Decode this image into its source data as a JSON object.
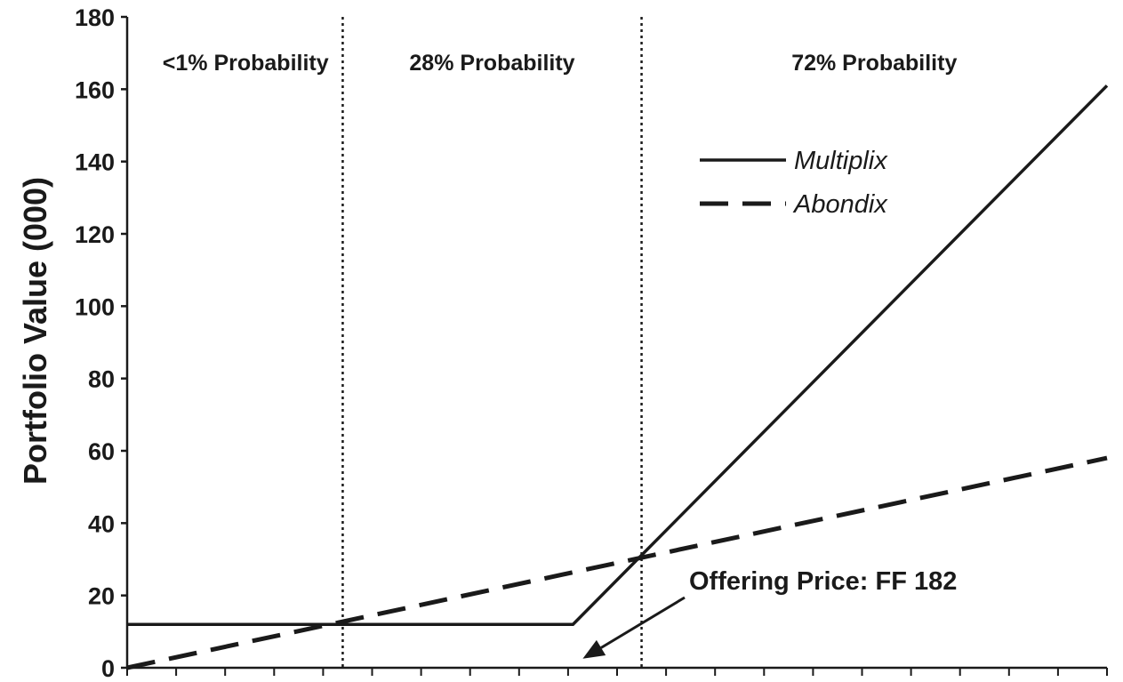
{
  "chart_data": {
    "type": "line",
    "ylabel": "Portfolio Value (000)",
    "ylim": [
      0,
      180
    ],
    "yticks": [
      0,
      20,
      40,
      60,
      80,
      100,
      120,
      140,
      160,
      180
    ],
    "xlim": [
      0,
      20
    ],
    "x_minor_ticks": 20,
    "legend_position": "upper-right",
    "series": [
      {
        "name": "Multiplix",
        "style": "solid",
        "color": "#1a1a1a",
        "points": [
          [
            0,
            12
          ],
          [
            9.1,
            12
          ],
          [
            20,
            161
          ]
        ]
      },
      {
        "name": "Abondix",
        "style": "dashed",
        "color": "#1a1a1a",
        "points": [
          [
            0,
            0
          ],
          [
            20,
            58
          ]
        ]
      }
    ],
    "regions": [
      {
        "label": "<1% Probability",
        "x_start": 0,
        "x_end": 4.4
      },
      {
        "label": "28% Probability",
        "x_start": 4.4,
        "x_end": 10.5
      },
      {
        "label": "72% Probability",
        "x_start": 10.5,
        "x_end": 20
      }
    ],
    "boundaries": [
      4.4,
      10.5
    ],
    "annotation": {
      "text": "Offering Price: FF 182",
      "arrow_target": [
        9.3,
        2.5
      ]
    }
  }
}
